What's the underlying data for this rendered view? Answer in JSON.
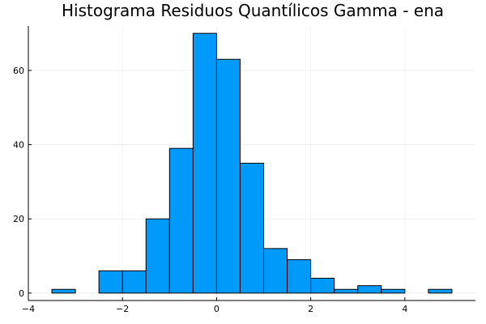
{
  "chart_data": {
    "type": "bar",
    "title": "Histograma Residuos Quantílicos Gamma - ena",
    "xlabel": "",
    "ylabel": "",
    "xlim": [
      -4,
      5.5
    ],
    "ylim": [
      -2,
      72
    ],
    "x_ticks": [
      -4,
      -2,
      0,
      2,
      4
    ],
    "x_tick_labels": [
      "−4",
      "−2",
      "0",
      "2",
      "4"
    ],
    "y_ticks": [
      0,
      20,
      40,
      60
    ],
    "y_tick_labels": [
      "0",
      "20",
      "40",
      "60"
    ],
    "grid": true,
    "legend": "none",
    "bar_color": "#009AFA",
    "bins": [
      {
        "start": -3.5,
        "end": -3.0,
        "count": 1
      },
      {
        "start": -3.0,
        "end": -2.5,
        "count": 0
      },
      {
        "start": -2.5,
        "end": -2.0,
        "count": 6
      },
      {
        "start": -2.0,
        "end": -1.5,
        "count": 6
      },
      {
        "start": -1.5,
        "end": -1.0,
        "count": 20
      },
      {
        "start": -1.0,
        "end": -0.5,
        "count": 39
      },
      {
        "start": -0.5,
        "end": 0.0,
        "count": 70
      },
      {
        "start": 0.0,
        "end": 0.5,
        "count": 63
      },
      {
        "start": 0.5,
        "end": 1.0,
        "count": 35
      },
      {
        "start": 1.0,
        "end": 1.5,
        "count": 12
      },
      {
        "start": 1.5,
        "end": 2.0,
        "count": 9
      },
      {
        "start": 2.0,
        "end": 2.5,
        "count": 4
      },
      {
        "start": 2.5,
        "end": 3.0,
        "count": 1
      },
      {
        "start": 3.0,
        "end": 3.5,
        "count": 2
      },
      {
        "start": 3.5,
        "end": 4.0,
        "count": 1
      },
      {
        "start": 4.0,
        "end": 4.5,
        "count": 0
      },
      {
        "start": 4.5,
        "end": 5.0,
        "count": 1
      }
    ]
  }
}
